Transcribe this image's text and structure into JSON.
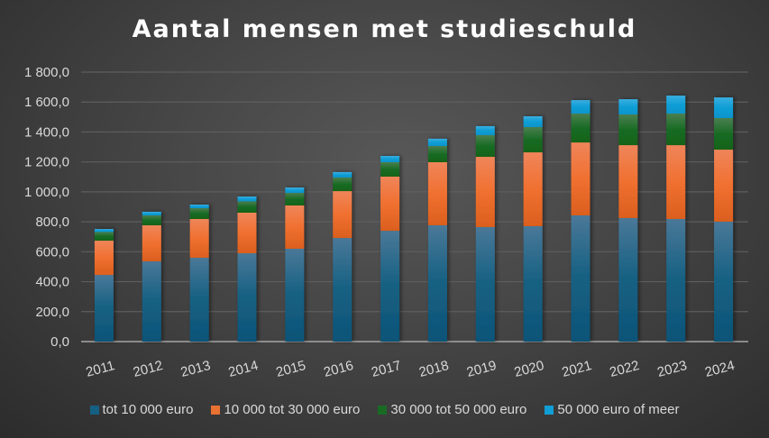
{
  "chart_data": {
    "type": "bar",
    "stacked": true,
    "title": "Aantal mensen met studieschuld",
    "xlabel": "",
    "ylabel": "",
    "ylim": [
      0,
      1800
    ],
    "yticks": [
      0,
      200,
      400,
      600,
      800,
      1000,
      1200,
      1400,
      1600,
      1800
    ],
    "ytick_labels": [
      "0,0",
      "200,0",
      "400,0",
      "600,0",
      "800,0",
      "1 000,0",
      "1 200,0",
      "1 400,0",
      "1 600,0",
      "1 800,0"
    ],
    "grid": true,
    "legend_position": "bottom",
    "categories": [
      "2011",
      "2012",
      "2013",
      "2014",
      "2015",
      "2016",
      "2017",
      "2018",
      "2019",
      "2020",
      "2021",
      "2022",
      "2023",
      "2024"
    ],
    "series": [
      {
        "name": "tot 10 000 euro",
        "color": "#156082",
        "values": [
          445,
          536,
          560,
          590,
          620,
          692,
          740,
          777,
          765,
          771,
          843,
          825,
          819,
          801
        ]
      },
      {
        "name": "10 000 tot 30 000 euro",
        "color": "#E97132",
        "values": [
          229,
          241,
          259,
          271,
          289,
          313,
          362,
          421,
          469,
          493,
          487,
          487,
          493,
          481
        ]
      },
      {
        "name": "30 000 tot 50 000 euro",
        "color": "#196B24",
        "values": [
          58,
          66,
          72,
          76,
          84,
          91,
          96,
          108,
          145,
          169,
          193,
          205,
          211,
          211
        ]
      },
      {
        "name": "50 000 euro of meer",
        "color": "#0F9ED5",
        "values": [
          20,
          24,
          24,
          32,
          36,
          36,
          42,
          49,
          60,
          72,
          90,
          102,
          120,
          138
        ]
      }
    ]
  }
}
